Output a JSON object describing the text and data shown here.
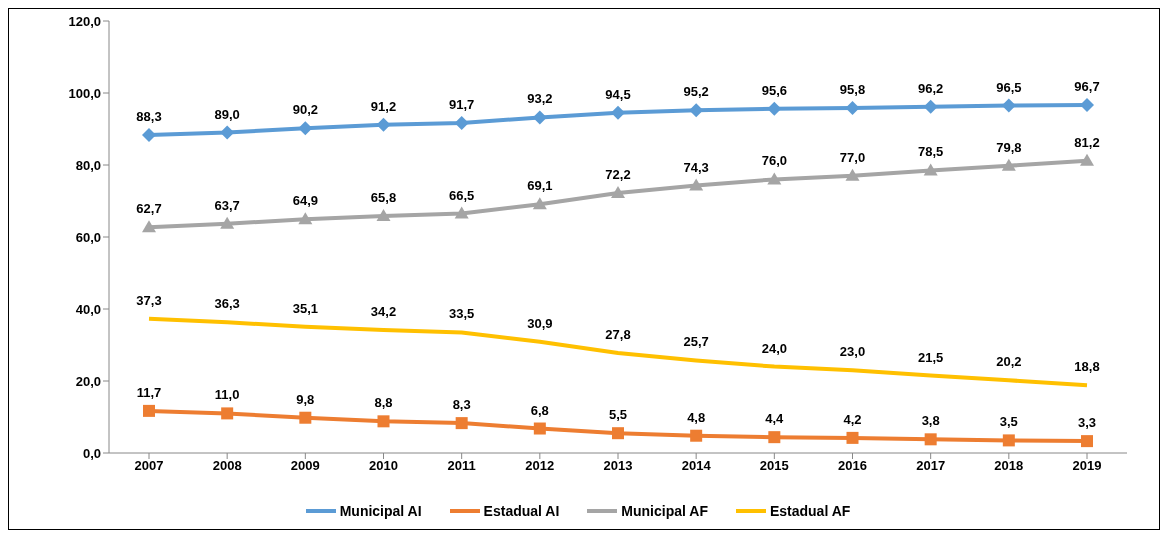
{
  "chart_data": {
    "type": "line",
    "categories": [
      "2007",
      "2008",
      "2009",
      "2010",
      "2011",
      "2012",
      "2013",
      "2014",
      "2015",
      "2016",
      "2017",
      "2018",
      "2019"
    ],
    "series": [
      {
        "name": "Municipal AI",
        "color": "#5b9bd5",
        "marker": "diamond",
        "values": [
          88.3,
          89.0,
          90.2,
          91.2,
          91.7,
          93.2,
          94.5,
          95.2,
          95.6,
          95.8,
          96.2,
          96.5,
          96.7
        ],
        "value_labels": [
          "88,3",
          "89,0",
          "90,2",
          "91,2",
          "91,7",
          "93,2",
          "94,5",
          "95,2",
          "95,6",
          "95,8",
          "96,2",
          "96,5",
          "96,7"
        ]
      },
      {
        "name": "Estadual AI",
        "color": "#ed7d31",
        "marker": "square",
        "values": [
          11.7,
          11.0,
          9.8,
          8.8,
          8.3,
          6.8,
          5.5,
          4.8,
          4.4,
          4.2,
          3.8,
          3.5,
          3.3
        ],
        "value_labels": [
          "11,7",
          "11,0",
          "9,8",
          "8,8",
          "8,3",
          "6,8",
          "5,5",
          "4,8",
          "4,4",
          "4,2",
          "3,8",
          "3,5",
          "3,3"
        ]
      },
      {
        "name": "Municipal AF",
        "color": "#a5a5a5",
        "marker": "triangle",
        "values": [
          62.7,
          63.7,
          64.9,
          65.8,
          66.5,
          69.1,
          72.2,
          74.3,
          76.0,
          77.0,
          78.5,
          79.8,
          81.2
        ],
        "value_labels": [
          "62,7",
          "63,7",
          "64,9",
          "65,8",
          "66,5",
          "69,1",
          "72,2",
          "74,3",
          "76,0",
          "77,0",
          "78,5",
          "79,8",
          "81,2"
        ]
      },
      {
        "name": "Estadual AF",
        "color": "#ffc000",
        "marker": "none",
        "values": [
          37.3,
          36.3,
          35.1,
          34.2,
          33.5,
          30.9,
          27.8,
          25.7,
          24.0,
          23.0,
          21.5,
          20.2,
          18.8
        ],
        "value_labels": [
          "37,3",
          "36,3",
          "35,1",
          "34,2",
          "33,5",
          "30,9",
          "27,8",
          "25,7",
          "24,0",
          "23,0",
          "21,5",
          "20,2",
          "18,8"
        ]
      }
    ],
    "ylim": [
      0,
      120
    ],
    "yticks": [
      {
        "value": 0,
        "label": "0,0"
      },
      {
        "value": 20,
        "label": "20,0"
      },
      {
        "value": 40,
        "label": "40,0"
      },
      {
        "value": 60,
        "label": "60,0"
      },
      {
        "value": 80,
        "label": "80,0"
      },
      {
        "value": 100,
        "label": "100,0"
      },
      {
        "value": 120,
        "label": "120,0"
      }
    ],
    "grid": false,
    "legend": "bottom",
    "line_style": "solid"
  }
}
